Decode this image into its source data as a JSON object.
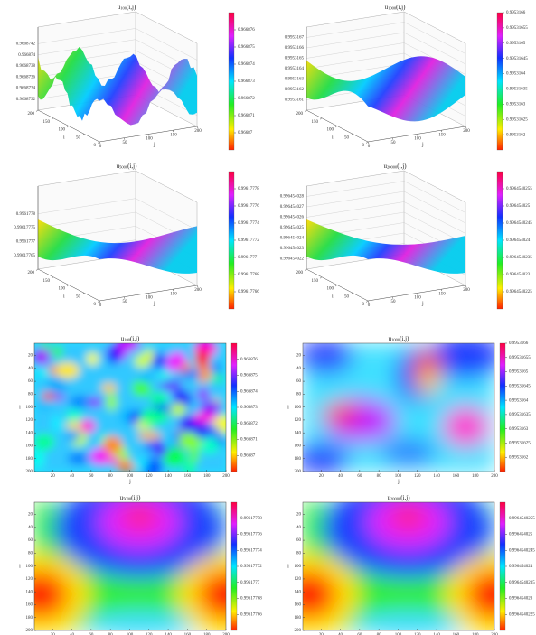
{
  "chart_data": [
    {
      "type": "surface",
      "title": {
        "symbol": "u",
        "subscript": "100",
        "args": "(i,j)"
      },
      "xlabel": "j",
      "ylabel": "i",
      "xticks": [
        0,
        50,
        100,
        150,
        200
      ],
      "yticks": [
        0,
        50,
        100,
        150,
        200
      ],
      "xlim": [
        0,
        200
      ],
      "ylim": [
        0,
        200
      ],
      "zlim": [
        0.966873,
        0.9668745
      ],
      "zticks": [
        0.9668732,
        0.9668734,
        0.9668736,
        0.9668738,
        0.966874,
        0.9668742
      ],
      "clim": [
        0.966869,
        0.966877
      ],
      "cticks": [
        0.96687,
        0.966871,
        0.966872,
        0.966873,
        0.966874,
        0.966875,
        0.966876
      ]
    },
    {
      "type": "surface",
      "title": {
        "symbol": "u",
        "subscript": "1000",
        "args": "(i,j)"
      },
      "xlabel": "j",
      "ylabel": "i",
      "xticks": [
        0,
        50,
        100,
        150,
        200
      ],
      "yticks": [
        0,
        50,
        100,
        150,
        200
      ],
      "xlim": [
        0,
        200
      ],
      "ylim": [
        0,
        200
      ],
      "zlim": [
        0.995316,
        0.9953168
      ],
      "zticks": [
        0.9953161,
        0.9953162,
        0.9953163,
        0.9953164,
        0.9953165,
        0.9953166,
        0.9953167
      ],
      "clim": [
        0.99531615,
        0.9953166
      ],
      "cticks": [
        0.9953162,
        0.99531625,
        0.9953163,
        0.99531635,
        0.9953164,
        0.99531645,
        0.9953165,
        0.99531655,
        0.9953166
      ]
    },
    {
      "type": "surface",
      "title": {
        "symbol": "u",
        "subscript": "5000",
        "args": "(i,j)"
      },
      "xlabel": "j",
      "ylabel": "i",
      "xticks": [
        0,
        50,
        100,
        150,
        200
      ],
      "yticks": [
        0,
        50,
        100,
        150,
        200
      ],
      "xlim": [
        0,
        200
      ],
      "ylim": [
        0,
        200
      ],
      "zlim": [
        0.9961776,
        0.9961779
      ],
      "zticks": [
        0.99617765,
        0.9961777,
        0.99617775,
        0.9961778
      ],
      "clim": [
        0.99617764,
        0.9961778
      ],
      "cticks": [
        0.99617766,
        0.99617768,
        0.9961777,
        0.99617772,
        0.99617774,
        0.99617776,
        0.99617778
      ]
    },
    {
      "type": "surface",
      "title": {
        "symbol": "u",
        "subscript": "20000",
        "args": "(i,j)"
      },
      "xlabel": "j",
      "ylabel": "i",
      "xticks": [
        0,
        50,
        100,
        150,
        200
      ],
      "yticks": [
        0,
        50,
        100,
        150,
        200
      ],
      "xlim": [
        0,
        200
      ],
      "ylim": [
        0,
        200
      ],
      "zlim": [
        0.996454021,
        0.996454029
      ],
      "zticks": [
        0.996454022,
        0.996454023,
        0.996454024,
        0.996454025,
        0.996454026,
        0.996454027,
        0.996454028
      ],
      "clim": [
        0.996454022,
        0.996454026
      ],
      "cticks": [
        0.9964540225,
        0.996454023,
        0.9964540235,
        0.996454024,
        0.9964540245,
        0.996454025,
        0.9964540255
      ]
    },
    {
      "type": "contour",
      "title": {
        "symbol": "u",
        "subscript": "100",
        "args": "(i,j)"
      },
      "xlabel": "j",
      "ylabel": "i",
      "xticks": [
        20,
        40,
        60,
        80,
        100,
        120,
        140,
        160,
        180,
        200
      ],
      "yticks": [
        20,
        40,
        60,
        80,
        100,
        120,
        140,
        160,
        180,
        200
      ],
      "xlim": [
        1,
        200
      ],
      "ylim": [
        1,
        200
      ],
      "clim": [
        0.966869,
        0.966877
      ],
      "cticks": [
        0.96687,
        0.966871,
        0.966872,
        0.966873,
        0.966874,
        0.966875,
        0.966876
      ]
    },
    {
      "type": "contour",
      "title": {
        "symbol": "u",
        "subscript": "1000",
        "args": "(i,j)"
      },
      "xlabel": "j",
      "ylabel": "i",
      "xticks": [
        20,
        40,
        60,
        80,
        100,
        120,
        140,
        160,
        180,
        200
      ],
      "yticks": [
        20,
        40,
        60,
        80,
        100,
        120,
        140,
        160,
        180,
        200
      ],
      "xlim": [
        1,
        200
      ],
      "ylim": [
        1,
        200
      ],
      "clim": [
        0.99531615,
        0.9953166
      ],
      "cticks": [
        0.9953162,
        0.99531625,
        0.9953163,
        0.99531635,
        0.9953164,
        0.99531645,
        0.9953165,
        0.99531655,
        0.9953166
      ]
    },
    {
      "type": "contour",
      "title": {
        "symbol": "u",
        "subscript": "5000",
        "args": "(i,j)"
      },
      "xlabel": "j",
      "ylabel": "i",
      "xticks": [
        20,
        40,
        60,
        80,
        100,
        120,
        140,
        160,
        180,
        200
      ],
      "yticks": [
        20,
        40,
        60,
        80,
        100,
        120,
        140,
        160,
        180,
        200
      ],
      "xlim": [
        1,
        200
      ],
      "ylim": [
        1,
        200
      ],
      "clim": [
        0.99617764,
        0.9961778
      ],
      "cticks": [
        0.99617766,
        0.99617768,
        0.9961777,
        0.99617772,
        0.99617774,
        0.99617776,
        0.99617778
      ]
    },
    {
      "type": "contour",
      "title": {
        "symbol": "u",
        "subscript": "20000",
        "args": "(i,j)"
      },
      "xlabel": "j",
      "ylabel": "i",
      "xticks": [
        20,
        40,
        60,
        80,
        100,
        120,
        140,
        160,
        180,
        200
      ],
      "yticks": [
        20,
        40,
        60,
        80,
        100,
        120,
        140,
        160,
        180,
        200
      ],
      "xlim": [
        1,
        200
      ],
      "ylim": [
        1,
        200
      ],
      "clim": [
        0.996454022,
        0.996454026
      ],
      "cticks": [
        0.9964540225,
        0.996454023,
        0.9964540235,
        0.996454024,
        0.9964540245,
        0.996454025,
        0.9964540255
      ]
    }
  ]
}
